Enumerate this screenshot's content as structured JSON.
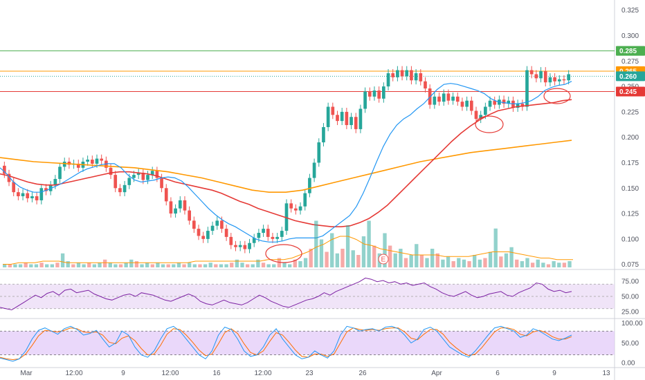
{
  "chart_data": {
    "type": "candlestick",
    "main": {
      "y_ticks": [
        0.325,
        0.3,
        0.275,
        0.25,
        0.225,
        0.2,
        0.175,
        0.15,
        0.125,
        0.1,
        0.075
      ],
      "ylim": [
        0.07,
        0.335
      ],
      "x_labels": [
        "Mar",
        "12:00",
        "9",
        "12:00",
        "16",
        "12:00",
        "23",
        "26",
        "Apr",
        "6",
        "9",
        "13"
      ],
      "horizontal_lines": [
        {
          "value": 0.285,
          "color": "#4caf50",
          "label": "0.285",
          "badge_color": "#4caf50"
        },
        {
          "value": 0.265,
          "color": "#ff9800",
          "label": "0.265",
          "badge_color": "#ff9800"
        },
        {
          "value": 0.26,
          "color": "#26a69a",
          "label": "0.260",
          "badge_color": "#26a69a",
          "dotted": true
        },
        {
          "value": 0.245,
          "color": "#e53935",
          "label": "0.245",
          "badge_color": "#e53935"
        }
      ],
      "candles": [
        [
          0.172,
          0.164
        ],
        [
          0.164,
          0.156
        ],
        [
          0.156,
          0.146
        ],
        [
          0.146,
          0.142
        ],
        [
          0.142,
          0.145
        ],
        [
          0.145,
          0.14
        ],
        [
          0.14,
          0.142
        ],
        [
          0.142,
          0.138
        ],
        [
          0.138,
          0.15
        ],
        [
          0.15,
          0.147
        ],
        [
          0.147,
          0.153
        ],
        [
          0.153,
          0.159
        ],
        [
          0.159,
          0.171
        ],
        [
          0.171,
          0.176
        ],
        [
          0.176,
          0.173
        ],
        [
          0.173,
          0.174
        ],
        [
          0.174,
          0.17
        ],
        [
          0.17,
          0.176
        ],
        [
          0.176,
          0.178
        ],
        [
          0.178,
          0.174
        ],
        [
          0.174,
          0.179
        ],
        [
          0.179,
          0.177
        ],
        [
          0.177,
          0.17
        ],
        [
          0.17,
          0.163
        ],
        [
          0.163,
          0.15
        ],
        [
          0.15,
          0.146
        ],
        [
          0.146,
          0.153
        ],
        [
          0.153,
          0.16
        ],
        [
          0.16,
          0.163
        ],
        [
          0.163,
          0.165
        ],
        [
          0.165,
          0.158
        ],
        [
          0.158,
          0.163
        ],
        [
          0.163,
          0.167
        ],
        [
          0.167,
          0.16
        ],
        [
          0.16,
          0.15
        ],
        [
          0.15,
          0.137
        ],
        [
          0.137,
          0.125
        ],
        [
          0.125,
          0.13
        ],
        [
          0.13,
          0.138
        ],
        [
          0.138,
          0.128
        ],
        [
          0.128,
          0.118
        ],
        [
          0.118,
          0.11
        ],
        [
          0.11,
          0.103
        ],
        [
          0.103,
          0.1
        ],
        [
          0.1,
          0.108
        ],
        [
          0.108,
          0.113
        ],
        [
          0.113,
          0.118
        ],
        [
          0.118,
          0.11
        ],
        [
          0.11,
          0.102
        ],
        [
          0.102,
          0.094
        ],
        [
          0.094,
          0.092
        ],
        [
          0.092,
          0.094
        ],
        [
          0.094,
          0.09
        ],
        [
          0.09,
          0.096
        ],
        [
          0.096,
          0.101
        ],
        [
          0.101,
          0.106
        ],
        [
          0.106,
          0.11
        ],
        [
          0.11,
          0.102
        ],
        [
          0.102,
          0.1
        ],
        [
          0.1,
          0.102
        ],
        [
          0.102,
          0.108
        ],
        [
          0.108,
          0.135
        ],
        [
          0.135,
          0.13
        ],
        [
          0.13,
          0.128
        ],
        [
          0.128,
          0.132
        ],
        [
          0.132,
          0.145
        ],
        [
          0.145,
          0.16
        ],
        [
          0.16,
          0.175
        ],
        [
          0.175,
          0.195
        ],
        [
          0.195,
          0.21
        ],
        [
          0.21,
          0.23
        ],
        [
          0.23,
          0.222
        ],
        [
          0.222,
          0.216
        ],
        [
          0.216,
          0.225
        ],
        [
          0.225,
          0.212
        ],
        [
          0.212,
          0.22
        ],
        [
          0.22,
          0.208
        ],
        [
          0.208,
          0.228
        ],
        [
          0.228,
          0.245
        ],
        [
          0.245,
          0.24
        ],
        [
          0.24,
          0.246
        ],
        [
          0.246,
          0.238
        ],
        [
          0.238,
          0.25
        ],
        [
          0.25,
          0.263
        ],
        [
          0.263,
          0.259
        ],
        [
          0.259,
          0.266
        ],
        [
          0.266,
          0.26
        ],
        [
          0.26,
          0.266
        ],
        [
          0.266,
          0.256
        ],
        [
          0.256,
          0.263
        ],
        [
          0.263,
          0.255
        ],
        [
          0.255,
          0.248
        ],
        [
          0.248,
          0.232
        ],
        [
          0.232,
          0.24
        ],
        [
          0.24,
          0.235
        ],
        [
          0.235,
          0.243
        ],
        [
          0.243,
          0.236
        ],
        [
          0.236,
          0.24
        ],
        [
          0.24,
          0.235
        ],
        [
          0.235,
          0.23
        ],
        [
          0.23,
          0.236
        ],
        [
          0.236,
          0.226
        ],
        [
          0.226,
          0.218
        ],
        [
          0.218,
          0.222
        ],
        [
          0.222,
          0.23
        ],
        [
          0.23,
          0.236
        ],
        [
          0.236,
          0.232
        ],
        [
          0.232,
          0.237
        ],
        [
          0.237,
          0.233
        ],
        [
          0.233,
          0.236
        ],
        [
          0.236,
          0.229
        ],
        [
          0.229,
          0.233
        ],
        [
          0.233,
          0.23
        ],
        [
          0.23,
          0.266
        ],
        [
          0.266,
          0.262
        ],
        [
          0.262,
          0.258
        ],
        [
          0.258,
          0.265
        ],
        [
          0.265,
          0.254
        ],
        [
          0.254,
          0.259
        ],
        [
          0.259,
          0.255
        ],
        [
          0.255,
          0.257
        ],
        [
          0.257,
          0.256
        ],
        [
          0.256,
          0.262
        ]
      ],
      "sma_fast": [
        0.17,
        0.164,
        0.156,
        0.151,
        0.148,
        0.146,
        0.146,
        0.148,
        0.151,
        0.154,
        0.158,
        0.162,
        0.166,
        0.169,
        0.171,
        0.173,
        0.174,
        0.174,
        0.17,
        0.163,
        0.158,
        0.156,
        0.157,
        0.158,
        0.16,
        0.161,
        0.16,
        0.157,
        0.151,
        0.144,
        0.137,
        0.13,
        0.124,
        0.119,
        0.115,
        0.112,
        0.108,
        0.104,
        0.1,
        0.098,
        0.097,
        0.097,
        0.098,
        0.1,
        0.101,
        0.101,
        0.101,
        0.101,
        0.103,
        0.108,
        0.113,
        0.118,
        0.123,
        0.132,
        0.145,
        0.16,
        0.176,
        0.191,
        0.203,
        0.212,
        0.218,
        0.222,
        0.228,
        0.233,
        0.24,
        0.247,
        0.252,
        0.253,
        0.252,
        0.25,
        0.248,
        0.246,
        0.243,
        0.238,
        0.235,
        0.234,
        0.233,
        0.233,
        0.234,
        0.236,
        0.24,
        0.246,
        0.249,
        0.251,
        0.252,
        0.255
      ],
      "ema_mid": [
        0.164,
        0.162,
        0.159,
        0.156,
        0.154,
        0.153,
        0.153,
        0.155,
        0.157,
        0.159,
        0.161,
        0.163,
        0.165,
        0.166,
        0.166,
        0.165,
        0.164,
        0.162,
        0.159,
        0.156,
        0.154,
        0.152,
        0.15,
        0.148,
        0.145,
        0.141,
        0.137,
        0.134,
        0.13,
        0.127,
        0.124,
        0.121,
        0.118,
        0.116,
        0.114,
        0.113,
        0.112,
        0.112,
        0.113,
        0.116,
        0.12,
        0.126,
        0.133,
        0.142,
        0.151,
        0.16,
        0.169,
        0.178,
        0.187,
        0.196,
        0.204,
        0.211,
        0.217,
        0.222,
        0.226,
        0.228,
        0.23,
        0.231,
        0.232,
        0.233,
        0.234,
        0.236,
        0.237
      ],
      "ema_slow": [
        0.18,
        0.178,
        0.176,
        0.175,
        0.174,
        0.173,
        0.172,
        0.171,
        0.17,
        0.168,
        0.166,
        0.163,
        0.16,
        0.156,
        0.152,
        0.148,
        0.146,
        0.146,
        0.148,
        0.152,
        0.156,
        0.16,
        0.164,
        0.168,
        0.172,
        0.176,
        0.179,
        0.182,
        0.185,
        0.187,
        0.189,
        0.191,
        0.193,
        0.195,
        0.197
      ]
    },
    "volume": {
      "bars": [
        2,
        2,
        2,
        2,
        3,
        2,
        2,
        3,
        2,
        2,
        3,
        9,
        4,
        2,
        3,
        2,
        3,
        2,
        3,
        5,
        3,
        2,
        2,
        3,
        5,
        4,
        2,
        3,
        2,
        3,
        2,
        2,
        2,
        3,
        2,
        3,
        2,
        2,
        2,
        3,
        2,
        2,
        2,
        3,
        5,
        3,
        2,
        2,
        5,
        3,
        2,
        2,
        6,
        3,
        2,
        5,
        4,
        6,
        12,
        30,
        18,
        10,
        22,
        9,
        12,
        27,
        11,
        8,
        20,
        30,
        14,
        9,
        22,
        14,
        9,
        12,
        6,
        8,
        15,
        8,
        6,
        12,
        9,
        5,
        7,
        4,
        6,
        5,
        4,
        8,
        5,
        6,
        10,
        25,
        7,
        9,
        13,
        5,
        4,
        6,
        3,
        5,
        3,
        2,
        4,
        3,
        3,
        4
      ],
      "sma": [
        2,
        2,
        3,
        3,
        3,
        4,
        4,
        4,
        3,
        3,
        3,
        3,
        3,
        3,
        3,
        3,
        3,
        3,
        3,
        3,
        3,
        3,
        3,
        3,
        4,
        4,
        4,
        4,
        4,
        4,
        4,
        4,
        4,
        5,
        5,
        5,
        6,
        8,
        10,
        13,
        15,
        18,
        20,
        20,
        18,
        15,
        14,
        12,
        11,
        10,
        9,
        8,
        8,
        8,
        8,
        7,
        7,
        7,
        7,
        8,
        9,
        10,
        10,
        10,
        9,
        8,
        7,
        6,
        6,
        5,
        5,
        5
      ]
    },
    "rsi": {
      "y_ticks": [
        "75.00",
        "50.00",
        "25.00"
      ],
      "ylim": [
        15,
        85
      ],
      "band": [
        30,
        70
      ],
      "values": [
        32,
        30,
        28,
        34,
        40,
        46,
        52,
        48,
        55,
        58,
        52,
        60,
        62,
        56,
        58,
        60,
        54,
        50,
        46,
        44,
        48,
        52,
        54,
        50,
        56,
        54,
        52,
        48,
        44,
        42,
        46,
        50,
        54,
        50,
        42,
        38,
        36,
        40,
        44,
        40,
        38,
        36,
        40,
        46,
        52,
        48,
        42,
        38,
        34,
        32,
        36,
        40,
        44,
        46,
        50,
        56,
        52,
        58,
        62,
        66,
        70,
        74,
        80,
        78,
        74,
        76,
        72,
        74,
        70,
        72,
        68,
        70,
        72,
        66,
        62,
        56,
        52,
        50,
        54,
        58,
        52,
        48,
        50,
        54,
        56,
        58,
        52,
        50,
        56,
        60,
        64,
        72,
        70,
        62,
        58,
        60,
        56,
        58
      ]
    },
    "stoch": {
      "y_ticks": [
        "100.00",
        "50.00",
        "0.00"
      ],
      "ylim": [
        -5,
        110
      ],
      "band": [
        20,
        80
      ],
      "k": [
        12,
        8,
        4,
        10,
        30,
        60,
        82,
        88,
        80,
        72,
        86,
        92,
        84,
        70,
        74,
        82,
        60,
        40,
        50,
        80,
        70,
        40,
        20,
        14,
        30,
        60,
        86,
        92,
        80,
        60,
        40,
        20,
        10,
        30,
        70,
        90,
        84,
        60,
        30,
        16,
        20,
        40,
        70,
        86,
        60,
        40,
        20,
        10,
        14,
        30,
        20,
        12,
        30,
        70,
        92,
        88,
        80,
        84,
        86,
        80,
        90,
        92,
        86,
        70,
        50,
        60,
        84,
        90,
        80,
        60,
        40,
        30,
        20,
        14,
        30,
        50,
        70,
        88,
        92,
        86,
        80,
        64,
        70,
        86,
        80,
        70,
        60,
        56,
        62,
        70
      ],
      "d": [
        14,
        10,
        8,
        10,
        22,
        44,
        68,
        82,
        80,
        78,
        82,
        88,
        86,
        78,
        76,
        78,
        70,
        52,
        48,
        62,
        68,
        56,
        36,
        20,
        22,
        44,
        72,
        86,
        84,
        70,
        52,
        32,
        18,
        22,
        48,
        76,
        86,
        74,
        48,
        26,
        20,
        30,
        54,
        76,
        70,
        52,
        32,
        16,
        14,
        22,
        22,
        16,
        22,
        50,
        78,
        88,
        84,
        82,
        84,
        82,
        86,
        88,
        88,
        78,
        62,
        58,
        72,
        84,
        84,
        72,
        52,
        38,
        26,
        18,
        22,
        38,
        58,
        78,
        88,
        88,
        84,
        72,
        68,
        78,
        82,
        76,
        66,
        60,
        60,
        66
      ]
    }
  },
  "colors": {
    "up": "#26a69a",
    "down": "#ef5350",
    "sma_fast": "#2196f3",
    "ema_mid": "#e53935",
    "ema_slow": "#ff9800",
    "rsi_line": "#7b1fa2",
    "rsi_band": "#e9d8f5",
    "stoch_k": "#2196f3",
    "stoch_d": "#ff6d00",
    "stoch_band": "#e1c8f8",
    "annotation": "#e53935",
    "earnings_marker": "#ef5350"
  },
  "earnings_marker": {
    "label": "E"
  }
}
